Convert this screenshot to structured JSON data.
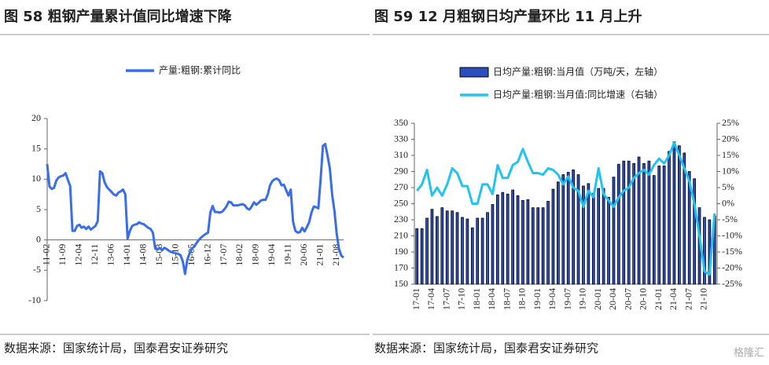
{
  "chart_data": [
    {
      "type": "line",
      "title": "图 58  粗钢产量累计值同比增速下降",
      "source": "数据来源：国家统计局，国泰君安证券研究",
      "categories": [
        "11-02",
        null,
        null,
        null,
        null,
        null,
        null,
        "11-09",
        null,
        null,
        null,
        null,
        null,
        null,
        "12-04",
        null,
        null,
        null,
        null,
        null,
        null,
        "12-11",
        null,
        null,
        null,
        null,
        null,
        null,
        "13-06",
        null,
        null,
        null,
        null,
        null,
        null,
        "14-01",
        null,
        null,
        null,
        null,
        null,
        null,
        "14-08",
        null,
        null,
        null,
        null,
        null,
        null,
        "15-03",
        null,
        null,
        null,
        null,
        null,
        null,
        "15-10",
        null,
        null,
        null,
        null,
        null,
        null,
        "16-05",
        null,
        null,
        null,
        null,
        null,
        null,
        "16-12",
        null,
        null,
        null,
        null,
        null,
        null,
        "17-07",
        null,
        null,
        null,
        null,
        null,
        null,
        "18-02",
        null,
        null,
        null,
        null,
        null,
        null,
        "18-09",
        null,
        null,
        null,
        null,
        null,
        null,
        "19-04",
        null,
        null,
        null,
        null,
        null,
        null,
        "19-11",
        null,
        null,
        null,
        null,
        null,
        null,
        "20-06",
        null,
        null,
        null,
        null,
        null,
        null,
        "21-01",
        null,
        null,
        null,
        null,
        null,
        null,
        "21-08",
        null,
        null,
        null
      ],
      "series": [
        {
          "name": "产量:粗钢:累计同比",
          "color": "#3a6ee8",
          "values": [
            12.5,
            8.8,
            8.4,
            8.6,
            9.8,
            10.3,
            10.5,
            10.6,
            11.0,
            9.9,
            8.9,
            1.5,
            1.5,
            2.3,
            2.5,
            2.0,
            2.2,
            1.8,
            2.2,
            1.7,
            2.0,
            2.3,
            3.1,
            11.3,
            11.0,
            9.5,
            8.7,
            8.3,
            7.9,
            7.5,
            7.3,
            7.8,
            8.0,
            8.3,
            7.5,
            0.2,
            1.5,
            2.3,
            2.5,
            2.6,
            2.9,
            2.7,
            2.6,
            2.3,
            2.0,
            1.8,
            1.2,
            -1.4,
            -1.6,
            -1.3,
            -1.7,
            -1.3,
            -1.5,
            -1.8,
            -2.0,
            -2.1,
            -2.2,
            -2.3,
            -2.5,
            -3.5,
            -5.6,
            -3.2,
            -2.2,
            -1.4,
            -1.1,
            -0.5,
            0.0,
            0.4,
            0.7,
            1.0,
            1.2,
            4.5,
            5.6,
            4.6,
            4.6,
            4.5,
            4.6,
            5.0,
            5.5,
            6.3,
            6.2,
            5.7,
            5.7,
            5.7,
            5.8,
            5.9,
            5.7,
            5.2,
            5.0,
            5.5,
            6.2,
            5.8,
            6.1,
            6.5,
            6.6,
            6.6,
            7.5,
            9.0,
            9.7,
            10.0,
            10.1,
            9.8,
            9.0,
            9.1,
            8.2,
            7.3,
            8.3,
            3.0,
            1.5,
            1.2,
            1.3,
            2.0,
            1.4,
            2.1,
            2.9,
            4.5,
            5.5,
            5.4,
            5.2,
            10.0,
            15.5,
            15.8,
            13.9,
            11.8,
            7.5,
            4.8,
            1.0,
            -1.5,
            -2.6,
            -2.9
          ]
        }
      ],
      "ylim": [
        -10,
        20
      ],
      "yticks": [
        -10,
        -5,
        0,
        5,
        10,
        15,
        20
      ]
    },
    {
      "type": "combo",
      "title": "图 59 12 月粗钢日均产量环比 11 月上升",
      "source": "数据来源：国家统计局，国泰君安证券研究",
      "categories": [
        "17-01",
        null,
        null,
        "17-04",
        null,
        null,
        "17-07",
        null,
        null,
        "17-10",
        null,
        null,
        "18-01",
        null,
        null,
        "18-04",
        null,
        null,
        "18-07",
        null,
        null,
        "18-10",
        null,
        null,
        "19-01",
        null,
        null,
        "19-04",
        null,
        null,
        "19-07",
        null,
        null,
        "19-10",
        null,
        null,
        "20-01",
        null,
        null,
        "20-04",
        null,
        null,
        "20-07",
        null,
        null,
        "20-10",
        null,
        null,
        "21-01",
        null,
        null,
        "21-04",
        null,
        null,
        "21-07",
        null,
        null,
        "21-10",
        null,
        null
      ],
      "series": [
        {
          "name": "日均产量:粗钢:当月值（万吨/天，左轴）",
          "type": "bar",
          "color": "#2b4fbf",
          "values": [
            219,
            219,
            232,
            243,
            234,
            245,
            241,
            241,
            239,
            233,
            231,
            220,
            232,
            232,
            239,
            249,
            261,
            264,
            262,
            267,
            260,
            254,
            255,
            245,
            245,
            245,
            253,
            268,
            277,
            286,
            289,
            292,
            286,
            272,
            275,
            263,
            269,
            269,
            258,
            283,
            299,
            303,
            303,
            300,
            308,
            300,
            303,
            285,
            297,
            297,
            315,
            327,
            322,
            313,
            290,
            281,
            245,
            233,
            230,
            235
          ]
        },
        {
          "name": "日均产量:粗钢:当月值:同比增速（右轴）",
          "type": "line",
          "axis": "y2",
          "color": "#22c4ee",
          "values": [
            4,
            6,
            10.5,
            2.5,
            5,
            2.5,
            6,
            11,
            9.5,
            5.5,
            5.5,
            0,
            0,
            6,
            6,
            3,
            12,
            8,
            8,
            12,
            13,
            17,
            13,
            9.5,
            9.5,
            9,
            11,
            10.5,
            9,
            6,
            8.5,
            5,
            4,
            -1,
            4,
            2,
            11,
            3,
            1,
            -1,
            2,
            4,
            5,
            8,
            9.5,
            10.5,
            9,
            12,
            14,
            12.5,
            15,
            19,
            15,
            11,
            7,
            0,
            -10,
            -21,
            -22,
            -3
          ]
        }
      ],
      "ylim": [
        150,
        350
      ],
      "yticks": [
        150,
        170,
        190,
        210,
        230,
        250,
        270,
        290,
        310,
        330,
        350
      ],
      "y2lim": [
        -25,
        25
      ],
      "y2ticks": [
        {
          "value": -25,
          "label": "-25%"
        },
        {
          "value": -20,
          "label": "-20%"
        },
        {
          "value": -15,
          "label": "-15%"
        },
        {
          "value": -10,
          "label": "-10%"
        },
        {
          "value": -5,
          "label": "-5%"
        },
        {
          "value": 0,
          "label": "0%"
        },
        {
          "value": 5,
          "label": "5%"
        },
        {
          "value": 10,
          "label": "10%"
        },
        {
          "value": 15,
          "label": "15%"
        },
        {
          "value": 20,
          "label": "20%"
        },
        {
          "value": 25,
          "label": "25%"
        }
      ]
    }
  ],
  "watermark": "格隆汇"
}
